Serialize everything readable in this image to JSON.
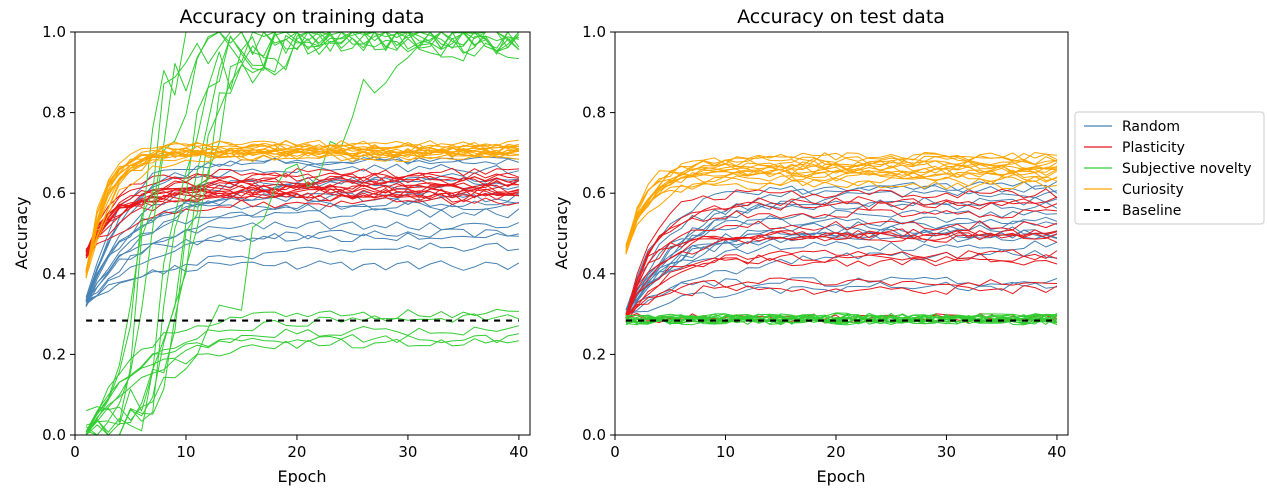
{
  "colors": {
    "Random": "#4682b4",
    "Plasticity": "#e8181c",
    "Subjective novelty": "#32cd32",
    "Curiosity": "#ffa500",
    "Baseline": "#000000"
  },
  "legend": {
    "placement": "right of figure, vertically centered",
    "items": [
      "Random",
      "Plasticity",
      "Subjective novelty",
      "Curiosity",
      "Baseline"
    ]
  },
  "chart_data": [
    {
      "type": "line",
      "title": "Accuracy on training data",
      "xlabel": "Epoch",
      "ylabel": "Accuracy",
      "xlim": [
        0,
        41
      ],
      "ylim": [
        0,
        1.0
      ],
      "xticks": [
        0,
        10,
        20,
        30,
        40
      ],
      "yticks": [
        0.0,
        0.2,
        0.4,
        0.6,
        0.8,
        1.0
      ],
      "grid": false,
      "x": [
        1,
        40
      ],
      "groups": [
        {
          "name": "Random",
          "start": 0.33,
          "plateaus": [
            0.42,
            0.47,
            0.5,
            0.52,
            0.55,
            0.57,
            0.58,
            0.59,
            0.6,
            0.62,
            0.64,
            0.66,
            0.68,
            0.68,
            0.63,
            0.49
          ]
        },
        {
          "name": "Plasticity",
          "start": 0.45,
          "plateaus": [
            0.58,
            0.59,
            0.6,
            0.6,
            0.61,
            0.61,
            0.62,
            0.62,
            0.63,
            0.63,
            0.64,
            0.64,
            0.65,
            0.59,
            0.6,
            0.61
          ]
        },
        {
          "name": "Subjective novelty",
          "start": 0.0,
          "plateaus": [
            0.99,
            0.99,
            0.99,
            0.98,
            0.98,
            0.99,
            0.97,
            0.99,
            0.98,
            0.99,
            0.99,
            0.26,
            0.24,
            0.29,
            0.23,
            0.3
          ]
        },
        {
          "name": "Curiosity",
          "start": 0.4,
          "plateaus": [
            0.69,
            0.7,
            0.7,
            0.7,
            0.71,
            0.71,
            0.71,
            0.72,
            0.72,
            0.7,
            0.69,
            0.7,
            0.71,
            0.72,
            0.7,
            0.71
          ]
        },
        {
          "name": "Baseline",
          "values": [
            0.284,
            0.284
          ]
        }
      ]
    },
    {
      "type": "line",
      "title": "Accuracy on test data",
      "xlabel": "Epoch",
      "ylabel": "Accuracy",
      "xlim": [
        0,
        41
      ],
      "ylim": [
        0,
        1.0
      ],
      "xticks": [
        0,
        10,
        20,
        30,
        40
      ],
      "yticks": [
        0.0,
        0.2,
        0.4,
        0.6,
        0.8,
        1.0
      ],
      "grid": false,
      "x": [
        1,
        40
      ],
      "groups": [
        {
          "name": "Random",
          "start": 0.3,
          "plateaus": [
            0.37,
            0.38,
            0.45,
            0.47,
            0.49,
            0.5,
            0.51,
            0.52,
            0.53,
            0.55,
            0.57,
            0.58,
            0.6,
            0.61,
            0.62,
            0.5
          ]
        },
        {
          "name": "Plasticity",
          "start": 0.29,
          "plateaus": [
            0.29,
            0.29,
            0.36,
            0.38,
            0.43,
            0.44,
            0.45,
            0.49,
            0.5,
            0.5,
            0.52,
            0.55,
            0.57,
            0.58,
            0.6,
            0.49
          ]
        },
        {
          "name": "Subjective novelty",
          "start": 0.285,
          "plateaus": [
            0.285,
            0.286,
            0.287,
            0.288,
            0.289,
            0.29,
            0.291,
            0.286,
            0.287,
            0.288,
            0.289,
            0.29,
            0.285,
            0.286,
            0.287,
            0.288
          ]
        },
        {
          "name": "Curiosity",
          "start": 0.46,
          "plateaus": [
            0.62,
            0.63,
            0.64,
            0.65,
            0.66,
            0.66,
            0.67,
            0.67,
            0.68,
            0.68,
            0.69,
            0.69,
            0.64,
            0.65,
            0.66,
            0.67
          ]
        },
        {
          "name": "Baseline",
          "values": [
            0.284,
            0.284
          ]
        }
      ]
    }
  ]
}
